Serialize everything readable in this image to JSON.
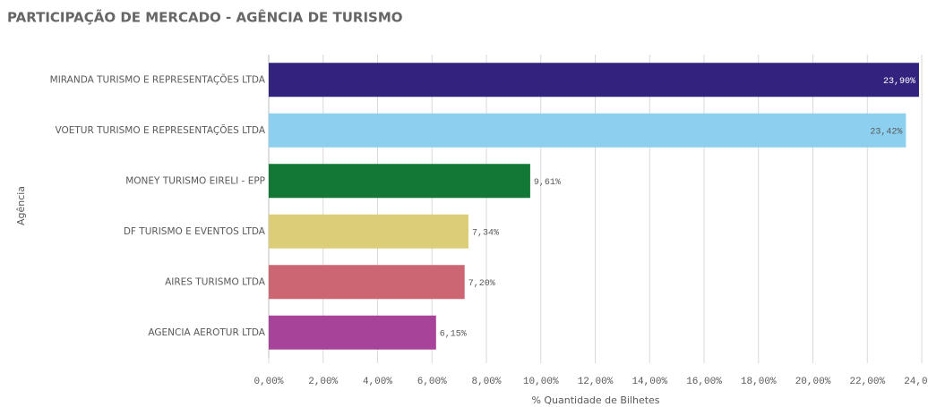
{
  "chart_data": {
    "type": "bar",
    "orientation": "horizontal",
    "title": "PARTICIPAÇÃO DE MERCADO - AGÊNCIA DE TURISMO",
    "x_label": "% Quantidade de Bilhetes",
    "y_label": "Agência",
    "categories": [
      "MIRANDA TURISMO E REPRESENTAÇÕES LTDA",
      "VOETUR TURISMO E REPRESENTAÇÕES LTDA",
      "MONEY TURISMO EIRELI - EPP",
      "DF TURISMO E EVENTOS LTDA",
      "AIRES TURISMO LTDA",
      "AGENCIA AEROTUR LTDA"
    ],
    "values": [
      23.9,
      23.42,
      9.61,
      7.34,
      7.2,
      6.15
    ],
    "value_labels": [
      "23,90%",
      "23,42%",
      "9,61%",
      "7,34%",
      "7,20%",
      "6,15%"
    ],
    "colors": [
      "#33237f",
      "#8ccfef",
      "#137736",
      "#dccd78",
      "#cc6673",
      "#a8439a"
    ],
    "xlim": [
      0,
      24
    ],
    "xticks": [
      {
        "value": 0,
        "label": "0,00%"
      },
      {
        "value": 2,
        "label": "2,00%"
      },
      {
        "value": 4,
        "label": "4,00%"
      },
      {
        "value": 6,
        "label": "6,00%"
      },
      {
        "value": 8,
        "label": "8,00%"
      },
      {
        "value": 10,
        "label": "10,00%"
      },
      {
        "value": 12,
        "label": "12,00%"
      },
      {
        "value": 14,
        "label": "14,00%"
      },
      {
        "value": 16,
        "label": "16,00%"
      },
      {
        "value": 18,
        "label": "18,00%"
      },
      {
        "value": 20,
        "label": "20,00%"
      },
      {
        "value": 22,
        "label": "22,00%"
      },
      {
        "value": 24,
        "label": "24,00%"
      }
    ],
    "grid": true
  }
}
